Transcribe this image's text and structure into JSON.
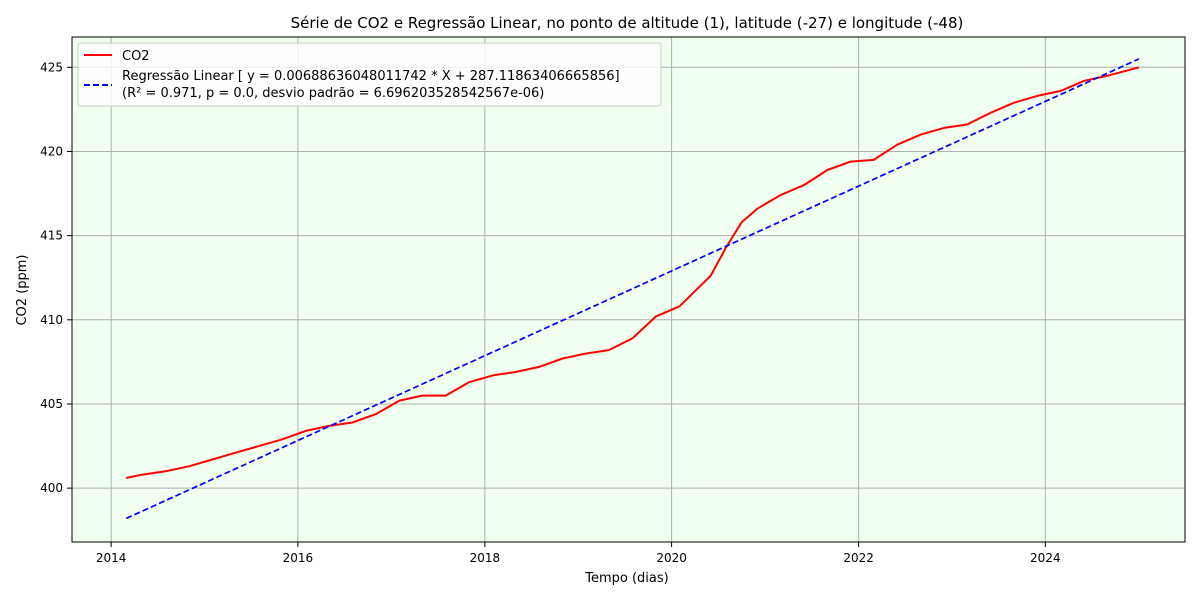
{
  "chart_data": {
    "type": "line",
    "title": "Série de CO2 e Regressão Linear, no ponto de altitude (1), latitude (-27) e longitude (-48)",
    "xlabel": "Tempo (dias)",
    "ylabel": "CO2 (ppm)",
    "xlim": [
      "2013-08-01",
      "2025-06-30"
    ],
    "ylim": [
      396.8,
      426.8
    ],
    "x_ticks": [
      "2014-01-01",
      "2016-01-01",
      "2018-01-01",
      "2020-01-01",
      "2022-01-01",
      "2024-01-01"
    ],
    "x_tick_labels": [
      "2014",
      "2016",
      "2018",
      "2020",
      "2022",
      "2024"
    ],
    "y_ticks": [
      400,
      405,
      410,
      415,
      420,
      425
    ],
    "y_tick_labels": [
      "400",
      "405",
      "410",
      "415",
      "420",
      "425"
    ],
    "grid": true,
    "plot_background": "#f0fff0",
    "legend_position": "top-left",
    "series": [
      {
        "name": "CO2",
        "color": "#ff0000",
        "style": "solid",
        "x": [
          "2014-03-01",
          "2014-05-01",
          "2014-08-01",
          "2014-11-01",
          "2015-02-01",
          "2015-05-01",
          "2015-08-01",
          "2015-11-01",
          "2016-02-01",
          "2016-05-01",
          "2016-08-01",
          "2016-11-01",
          "2017-02-01",
          "2017-05-01",
          "2017-08-01",
          "2017-11-01",
          "2018-02-01",
          "2018-05-01",
          "2018-08-01",
          "2018-11-01",
          "2019-02-01",
          "2019-05-01",
          "2019-08-01",
          "2019-11-01",
          "2020-02-01",
          "2020-04-01",
          "2020-06-01",
          "2020-08-01",
          "2020-10-01",
          "2020-12-01",
          "2021-03-01",
          "2021-06-01",
          "2021-09-01",
          "2021-12-01",
          "2022-03-01",
          "2022-06-01",
          "2022-09-01",
          "2022-12-01",
          "2023-03-01",
          "2023-06-01",
          "2023-09-01",
          "2023-12-01",
          "2024-03-01",
          "2024-06-01",
          "2024-09-01",
          "2025-01-01"
        ],
        "values": [
          400.6,
          400.8,
          401.0,
          401.3,
          401.7,
          402.1,
          402.5,
          402.9,
          403.4,
          403.7,
          403.9,
          404.4,
          405.2,
          405.5,
          405.5,
          406.3,
          406.7,
          406.9,
          407.2,
          407.7,
          408.0,
          408.2,
          408.9,
          410.2,
          410.8,
          411.7,
          412.6,
          414.3,
          415.8,
          416.6,
          417.4,
          418.0,
          418.9,
          419.4,
          419.5,
          420.4,
          421.0,
          421.4,
          421.6,
          422.3,
          422.9,
          423.3,
          423.6,
          424.2,
          424.5,
          425.0
        ]
      },
      {
        "name": "Regressão Linear [ y = 0.00688636048011742 * X + 287.11863406665856]",
        "name_line2": "(R² = 0.971, p = 0.0, desvio padrão = 6.696203528542567e-06)",
        "color": "#0000ff",
        "style": "dashed",
        "x": [
          "2014-03-01",
          "2025-01-01"
        ],
        "values": [
          398.2,
          425.5
        ]
      }
    ]
  }
}
